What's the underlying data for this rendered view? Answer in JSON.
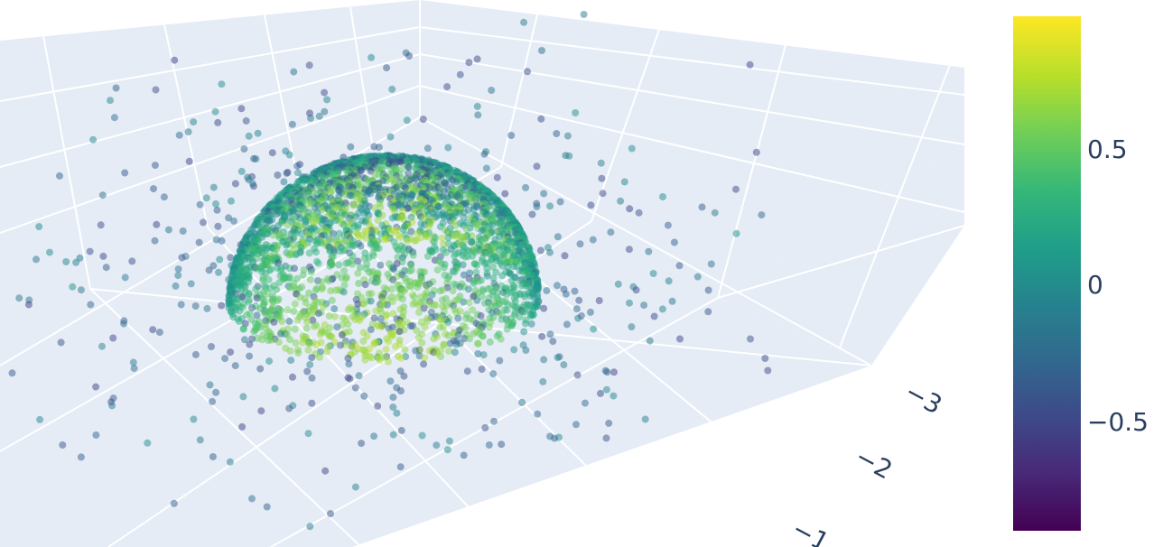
{
  "chart_data": {
    "type": "scatter3d",
    "description_axes": {
      "visible_axis_tick_labels": [
        "−3",
        "−2",
        "−1"
      ]
    },
    "colorscale": "viridis",
    "colorbar": {
      "range": [
        -0.95,
        0.95
      ],
      "tick_labels": [
        "0.5",
        "0",
        "−0.5"
      ],
      "tick_values": [
        0.5,
        0,
        -0.5
      ],
      "colors": [
        "#440154",
        "#482878",
        "#3e4989",
        "#31688e",
        "#26828e",
        "#1f9e89",
        "#35b779",
        "#6ece58",
        "#b5de2b",
        "#fde725"
      ]
    },
    "series": [
      {
        "shape": "hemisphere shell (upper half of unit sphere) plus scattered outer points",
        "marker_opacity": 0.5,
        "color_variable_range": [
          -0.95,
          0.95
        ]
      }
    ],
    "scene_background": "#e5ecf6",
    "grid_color": "#ffffff"
  }
}
